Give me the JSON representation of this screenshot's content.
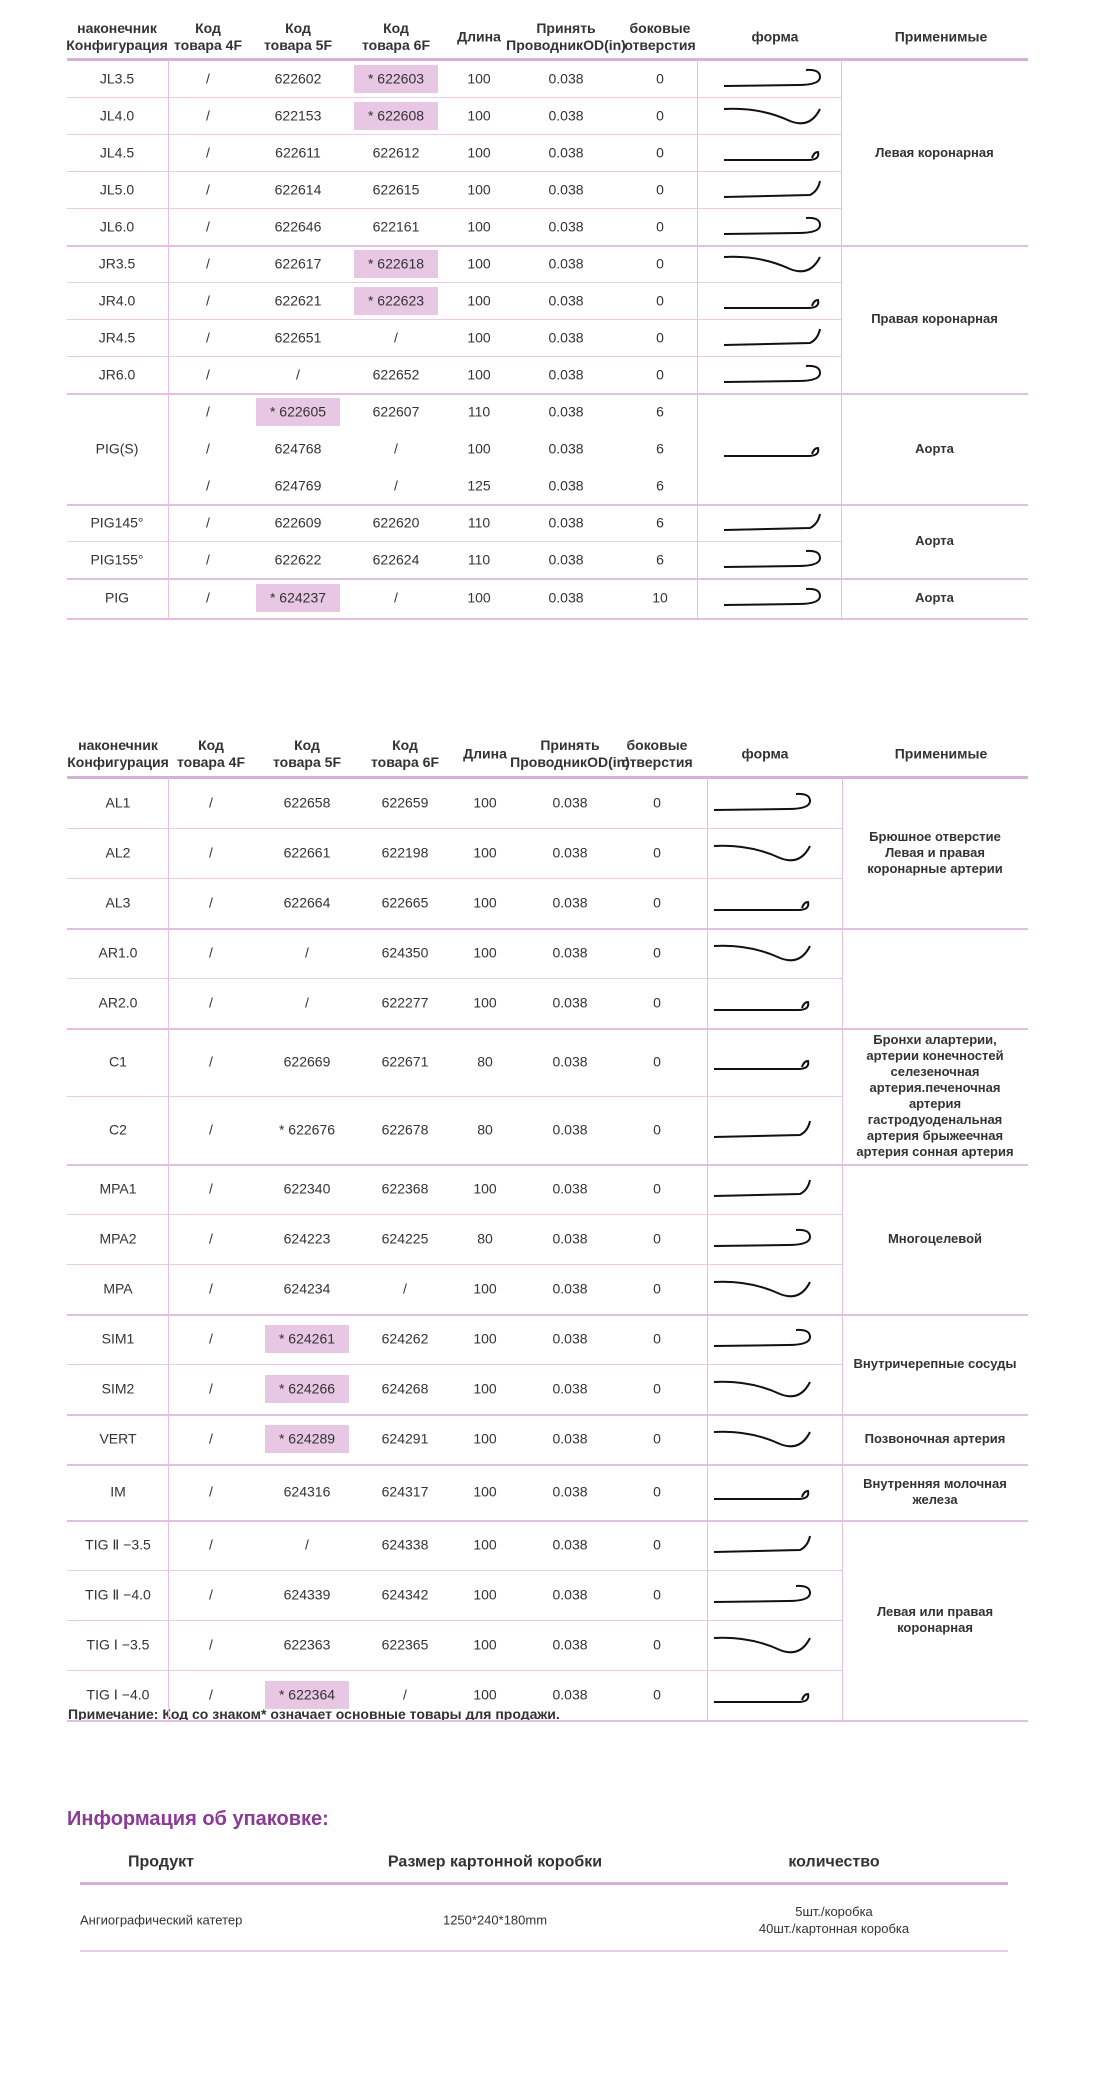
{
  "table1": {
    "headers": [
      "наконечник\nКонфигурация",
      "Код\nтовара 4F",
      "Код\nтовара 5F",
      "Код\nтовара 6F",
      "Длина",
      "Принять\nПроводникOD(in)",
      "боковые\nотверстия",
      "форма",
      "Применимые"
    ],
    "groups": [
      {
        "application": "Левая коронарная",
        "rows": [
          {
            "tip": "JL3.5",
            "lines": [
              {
                "cells": [
                  "/",
                  "622602",
                  "* 622603",
                  "100",
                  "0.038",
                  "0"
                ],
                "highlight": [
                  2
                ]
              }
            ]
          },
          {
            "tip": "JL4.0",
            "lines": [
              {
                "cells": [
                  "/",
                  "622153",
                  "* 622608",
                  "100",
                  "0.038",
                  "0"
                ],
                "highlight": [
                  2
                ]
              }
            ]
          },
          {
            "tip": "JL4.5",
            "lines": [
              {
                "cells": [
                  "/",
                  "622611",
                  "622612",
                  "100",
                  "0.038",
                  "0"
                ]
              }
            ]
          },
          {
            "tip": "JL5.0",
            "lines": [
              {
                "cells": [
                  "/",
                  "622614",
                  "622615",
                  "100",
                  "0.038",
                  "0"
                ]
              }
            ]
          },
          {
            "tip": "JL6.0",
            "lines": [
              {
                "cells": [
                  "/",
                  "622646",
                  "622161",
                  "100",
                  "0.038",
                  "0"
                ]
              }
            ]
          }
        ]
      },
      {
        "application": "Правая коронарная",
        "rows": [
          {
            "tip": "JR3.5",
            "lines": [
              {
                "cells": [
                  "/",
                  "622617",
                  "* 622618",
                  "100",
                  "0.038",
                  "0"
                ],
                "highlight": [
                  2
                ]
              }
            ]
          },
          {
            "tip": "JR4.0",
            "lines": [
              {
                "cells": [
                  "/",
                  "622621",
                  "* 622623",
                  "100",
                  "0.038",
                  "0"
                ],
                "highlight": [
                  2
                ]
              }
            ]
          },
          {
            "tip": "JR4.5",
            "lines": [
              {
                "cells": [
                  "/",
                  "622651",
                  "/",
                  "100",
                  "0.038",
                  "0"
                ]
              }
            ]
          },
          {
            "tip": "JR6.0",
            "lines": [
              {
                "cells": [
                  "/",
                  "/",
                  "622652",
                  "100",
                  "0.038",
                  "0"
                ]
              }
            ]
          }
        ]
      },
      {
        "application": "Аорта",
        "rows": [
          {
            "tip": "PIG(S)",
            "lines": [
              {
                "cells": [
                  "/",
                  "* 622605",
                  "622607",
                  "110",
                  "0.038",
                  "6"
                ],
                "highlight": [
                  1
                ]
              },
              {
                "cells": [
                  "/",
                  "624768",
                  "/",
                  "100",
                  "0.038",
                  "6"
                ]
              },
              {
                "cells": [
                  "/",
                  "624769",
                  "/",
                  "125",
                  "0.038",
                  "6"
                ]
              }
            ]
          }
        ]
      },
      {
        "application": "Аорта",
        "rows": [
          {
            "tip": "PIG145°",
            "lines": [
              {
                "cells": [
                  "/",
                  "622609",
                  "622620",
                  "110",
                  "0.038",
                  "6"
                ]
              }
            ]
          },
          {
            "tip": "PIG155°",
            "lines": [
              {
                "cells": [
                  "/",
                  "622622",
                  "622624",
                  "110",
                  "0.038",
                  "6"
                ]
              }
            ]
          }
        ]
      },
      {
        "application": "Аорта",
        "rows": [
          {
            "tip": "PIG",
            "lines": [
              {
                "cells": [
                  "/",
                  "* 624237",
                  "/",
                  "100",
                  "0.038",
                  "10"
                ],
                "highlight": [
                  1
                ]
              }
            ]
          }
        ]
      }
    ]
  },
  "table2": {
    "headers": [
      "наконечник\nКонфигурация",
      "Код\nтовара 4F",
      "Код\nтовара 5F",
      "Код\nтовара 6F",
      "Длина",
      "Принять\nПроводникOD(in)",
      "боковые\nотверстия",
      "форма",
      "Применимые"
    ],
    "groups": [
      {
        "application": "Брюшное отверстие Левая и правая коронарные артерии",
        "rows": [
          {
            "tip": "AL1",
            "lines": [
              {
                "cells": [
                  "/",
                  "622658",
                  "622659",
                  "100",
                  "0.038",
                  "0"
                ]
              }
            ]
          },
          {
            "tip": "AL2",
            "lines": [
              {
                "cells": [
                  "/",
                  "622661",
                  "622198",
                  "100",
                  "0.038",
                  "0"
                ]
              }
            ]
          },
          {
            "tip": "AL3",
            "lines": [
              {
                "cells": [
                  "/",
                  "622664",
                  "622665",
                  "100",
                  "0.038",
                  "0"
                ]
              }
            ]
          }
        ]
      },
      {
        "rows": [
          {
            "tip": "AR1.0",
            "lines": [
              {
                "cells": [
                  "/",
                  "/",
                  "624350",
                  "100",
                  "0.038",
                  "0"
                ]
              }
            ]
          },
          {
            "tip": "AR2.0",
            "lines": [
              {
                "cells": [
                  "/",
                  "/",
                  "622277",
                  "100",
                  "0.038",
                  "0"
                ]
              }
            ]
          }
        ]
      },
      {
        "application": "Бронхи алартерии, артерии конечностей селезеночная артерия.печеночная артерия гастродуоденальная артерия брыжеечная артерия сонная артерия",
        "rows": [
          {
            "tip": "C1",
            "lines": [
              {
                "cells": [
                  "/",
                  "622669",
                  "622671",
                  "80",
                  "0.038",
                  "0"
                ]
              }
            ]
          },
          {
            "tip": "C2",
            "lines": [
              {
                "cells": [
                  "/",
                  "* 622676",
                  "622678",
                  "80",
                  "0.038",
                  "0"
                ]
              }
            ]
          }
        ]
      },
      {
        "application": "Многоцелевой",
        "rows": [
          {
            "tip": "MPA1",
            "lines": [
              {
                "cells": [
                  "/",
                  "622340",
                  "622368",
                  "100",
                  "0.038",
                  "0"
                ]
              }
            ]
          },
          {
            "tip": "MPA2",
            "lines": [
              {
                "cells": [
                  "/",
                  "624223",
                  "624225",
                  "80",
                  "0.038",
                  "0"
                ]
              }
            ]
          },
          {
            "tip": "MPA",
            "lines": [
              {
                "cells": [
                  "/",
                  "624234",
                  "/",
                  "100",
                  "0.038",
                  "0"
                ]
              }
            ]
          }
        ]
      },
      {
        "application": "Внутричерепные сосуды",
        "rows": [
          {
            "tip": "SIM1",
            "lines": [
              {
                "cells": [
                  "/",
                  "* 624261",
                  "624262",
                  "100",
                  "0.038",
                  "0"
                ],
                "highlight": [
                  1
                ]
              }
            ]
          },
          {
            "tip": "SIM2",
            "lines": [
              {
                "cells": [
                  "/",
                  "* 624266",
                  "624268",
                  "100",
                  "0.038",
                  "0"
                ],
                "highlight": [
                  1
                ]
              }
            ]
          }
        ]
      },
      {
        "application": "Позвоночная артерия",
        "rows": [
          {
            "tip": "VERT",
            "lines": [
              {
                "cells": [
                  "/",
                  "* 624289",
                  "624291",
                  "100",
                  "0.038",
                  "0"
                ],
                "highlight": [
                  1
                ]
              }
            ]
          }
        ]
      },
      {
        "application": "Внутренняя молочная железа",
        "rows": [
          {
            "tip": "IM",
            "lines": [
              {
                "cells": [
                  "/",
                  "624316",
                  "624317",
                  "100",
                  "0.038",
                  "0"
                ]
              }
            ]
          }
        ]
      },
      {
        "application": "Левая или правая коронарная",
        "rows": [
          {
            "tip": "TIG Ⅱ −3.5",
            "lines": [
              {
                "cells": [
                  "/",
                  "/",
                  "624338",
                  "100",
                  "0.038",
                  "0"
                ]
              }
            ]
          },
          {
            "tip": "TIG Ⅱ −4.0",
            "lines": [
              {
                "cells": [
                  "/",
                  "624339",
                  "624342",
                  "100",
                  "0.038",
                  "0"
                ]
              }
            ]
          },
          {
            "tip": "TIG Ⅰ −3.5",
            "lines": [
              {
                "cells": [
                  "/",
                  "622363",
                  "622365",
                  "100",
                  "0.038",
                  "0"
                ]
              }
            ]
          },
          {
            "tip": "TIG Ⅰ −4.0",
            "lines": [
              {
                "cells": [
                  "/",
                  "* 622364",
                  "/",
                  "100",
                  "0.038",
                  "0"
                ],
                "highlight": [
                  1
                ]
              }
            ]
          }
        ]
      }
    ]
  },
  "note": "Примечание: Код со знаком* означает основные товары для продажи.",
  "packaging": {
    "title": "Информация об упаковке:",
    "headers": [
      "Продукт",
      "Размер картонной коробки",
      "количество"
    ],
    "row": [
      "Ангиографический катетер",
      "1250*240*180mm",
      "5шт./коробка\n40шт./картонная коробка"
    ]
  }
}
